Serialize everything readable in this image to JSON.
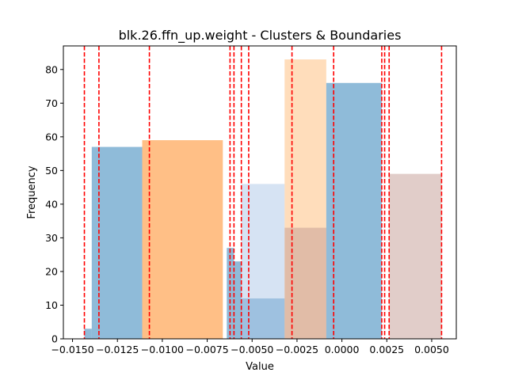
{
  "chart_data": {
    "type": "bar",
    "title": "blk.26.ffn_up.weight - Clusters & Boundaries",
    "xlabel": "Value",
    "ylabel": "Frequency",
    "xlim": [
      -0.01551,
      0.00637
    ],
    "ylim": [
      0,
      87
    ],
    "xticks": [
      -0.015,
      -0.0125,
      -0.01,
      -0.0075,
      -0.005,
      -0.0025,
      0.0,
      0.0025,
      0.005
    ],
    "xtick_labels": [
      "−0.0150",
      "−0.0125",
      "−0.0100",
      "−0.0075",
      "−0.0050",
      "−0.0025",
      "0.0000",
      "0.0025",
      "0.0050"
    ],
    "yticks": [
      0,
      10,
      20,
      30,
      40,
      50,
      60,
      70,
      80
    ],
    "ytick_labels": [
      "0",
      "10",
      "20",
      "30",
      "40",
      "50",
      "60",
      "70",
      "80"
    ],
    "bars": [
      {
        "x0": -0.01434,
        "x1": -0.01393,
        "value": 3,
        "color": "#1f77b4",
        "opacity": 0.5
      },
      {
        "x0": -0.01393,
        "x1": -0.01112,
        "value": 57,
        "color": "#1f77b4",
        "opacity": 0.5
      },
      {
        "x0": -0.01112,
        "x1": -0.00663,
        "value": 59,
        "color": "#ff7f0e",
        "opacity": 0.5
      },
      {
        "x0": -0.00641,
        "x1": -0.00601,
        "value": 27,
        "color": "#1f77b4",
        "opacity": 0.5
      },
      {
        "x0": -0.00601,
        "x1": -0.0056,
        "value": 23,
        "color": "#1f77b4",
        "opacity": 0.5
      },
      {
        "x0": -0.0056,
        "x1": -0.00319,
        "value": 12,
        "color": "#1f77b4",
        "opacity": 0.5
      },
      {
        "x0": -0.0056,
        "x1": -0.00319,
        "value": 46,
        "color": "#aec7e8",
        "opacity": 0.5
      },
      {
        "x0": -0.00319,
        "x1": -0.00087,
        "value": 83,
        "color": "#ffbb78",
        "opacity": 0.5
      },
      {
        "x0": -0.00319,
        "x1": -0.00087,
        "value": 33,
        "color": "#c49c94",
        "opacity": 0.5
      },
      {
        "x0": -0.00087,
        "x1": 0.00222,
        "value": 76,
        "color": "#1f77b4",
        "opacity": 0.5
      },
      {
        "x0": 0.00222,
        "x1": 0.00263,
        "value": 0,
        "color": "#1f77b4",
        "opacity": 0.5
      },
      {
        "x0": 0.00263,
        "x1": 0.00555,
        "value": 49,
        "color": "#c49c94",
        "opacity": 0.5
      }
    ],
    "boundaries": [
      -0.01434,
      -0.01353,
      -0.01072,
      -0.00623,
      -0.00601,
      -0.0056,
      -0.00519,
      -0.00278,
      -0.00046,
      0.00222,
      0.00238,
      0.00263,
      0.00555
    ],
    "boundary_color": "#ff0000",
    "grid": false,
    "legend": "none"
  }
}
